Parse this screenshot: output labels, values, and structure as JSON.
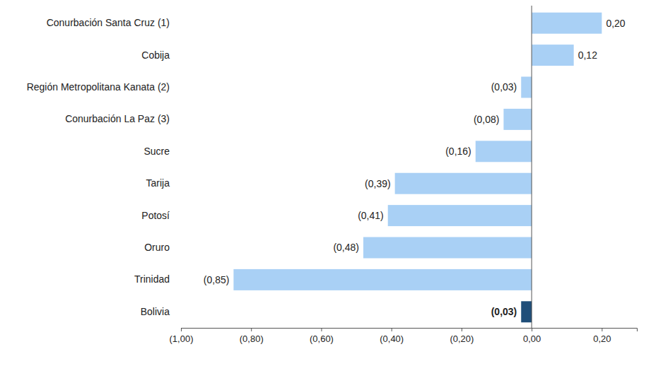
{
  "chart_data": {
    "type": "bar",
    "orientation": "horizontal",
    "categories": [
      "Conurbación Santa Cruz (1)",
      "Cobija",
      "Región Metropolitana Kanata (2)",
      "Conurbación La Paz (3)",
      "Sucre",
      "Tarija",
      "Potosí",
      "Oruro",
      "Trinidad",
      "Bolivia"
    ],
    "values": [
      0.2,
      0.12,
      -0.03,
      -0.08,
      -0.16,
      -0.39,
      -0.41,
      -0.48,
      -0.85,
      -0.03
    ],
    "value_labels": [
      "0,20",
      "0,12",
      "(0,03)",
      "(0,08)",
      "(0,16)",
      "(0,39)",
      "(0,41)",
      "(0,48)",
      "(0,85)",
      "(0,03)"
    ],
    "colors": [
      "#a9d0f5",
      "#a9d0f5",
      "#a9d0f5",
      "#a9d0f5",
      "#a9d0f5",
      "#a9d0f5",
      "#a9d0f5",
      "#a9d0f5",
      "#a9d0f5",
      "#1f4e79"
    ],
    "data_labels": true,
    "grid": false,
    "xlim": [
      -1.0,
      0.3
    ],
    "xticks": [
      {
        "value": -1.0,
        "label": "(1,00)"
      },
      {
        "value": -0.8,
        "label": "(0,80)"
      },
      {
        "value": -0.6,
        "label": "(0,60)"
      },
      {
        "value": -0.4,
        "label": "(0,40)"
      },
      {
        "value": -0.2,
        "label": "(0,20)"
      },
      {
        "value": 0,
        "label": "0,00"
      },
      {
        "value": 0.2,
        "label": "0,20"
      }
    ]
  }
}
